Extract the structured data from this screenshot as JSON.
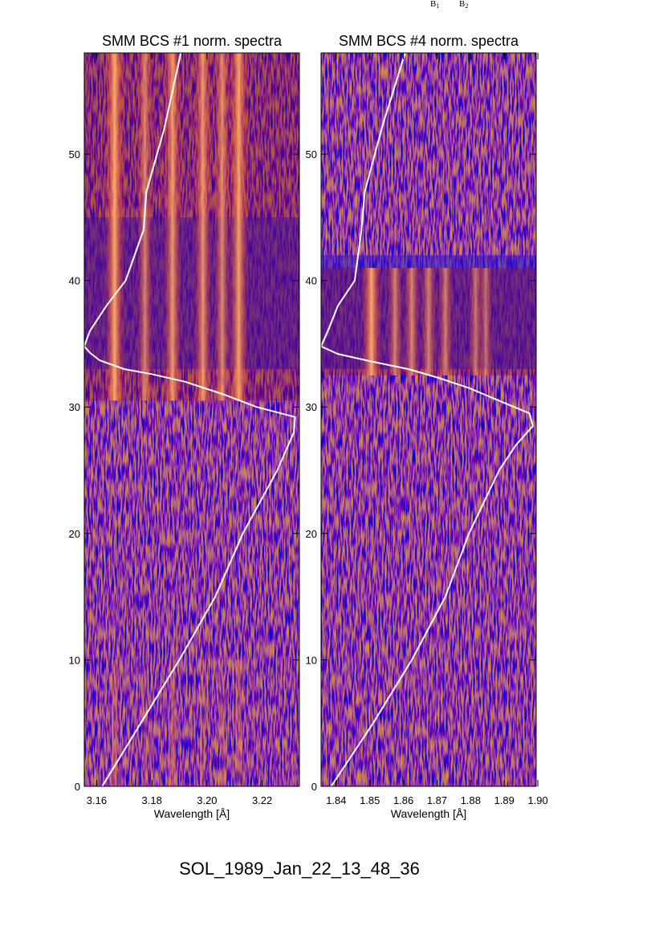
{
  "footer_label": "SOL_1989_Jan_22_13_48_36",
  "corner_labels": [
    "B",
    "B"
  ],
  "corner_subscripts": [
    "1",
    "2"
  ],
  "chart_data": [
    {
      "type": "heatmap",
      "title": "SMM BCS #1 norm. spectra",
      "xlabel": "Wavelength [Å]",
      "ylabel": "",
      "xlim": [
        3.1555,
        3.2335
      ],
      "ylim": [
        0,
        58
      ],
      "x_ticks": [
        3.16,
        3.18,
        3.2,
        3.22
      ],
      "x_tick_labels": [
        "3.16",
        "3.18",
        "3.20",
        "3.22"
      ],
      "y_ticks": [
        0,
        10,
        20,
        30,
        40,
        50
      ],
      "y_tick_labels": [
        "0",
        "10",
        "20",
        "30",
        "40",
        "50"
      ],
      "bright_band_time_range": [
        30.5,
        58
      ],
      "quiet_blue_time_range": [
        33,
        45
      ],
      "emission_lines": [
        {
          "wavelength": 3.1665,
          "strength": 1.0
        },
        {
          "wavelength": 3.1775,
          "strength": 0.5
        },
        {
          "wavelength": 3.1875,
          "strength": 0.8
        },
        {
          "wavelength": 3.1985,
          "strength": 0.75
        },
        {
          "wavelength": 3.2055,
          "strength": 0.6
        },
        {
          "wavelength": 3.2115,
          "strength": 0.9
        }
      ],
      "light_curve": {
        "color": "#ffffff",
        "t": [
          0,
          5,
          10,
          15,
          20,
          25,
          28,
          29.2,
          30,
          31,
          32,
          32.6,
          33,
          33.7,
          34.3,
          34.8,
          36,
          38,
          40,
          44,
          47,
          52,
          58
        ],
        "wavelength": [
          3.162,
          3.176,
          3.19,
          3.203,
          3.213,
          3.2255,
          3.2315,
          3.232,
          3.218,
          3.206,
          3.192,
          3.18,
          3.17,
          3.161,
          3.1575,
          3.1555,
          3.1575,
          3.1635,
          3.1705,
          3.177,
          3.178,
          3.1845,
          3.1905
        ]
      }
    },
    {
      "type": "heatmap",
      "title": "SMM BCS #4 norm. spectra",
      "xlabel": "Wavelength [Å]",
      "ylabel": "",
      "xlim": [
        1.8355,
        1.8995
      ],
      "ylim": [
        0,
        58
      ],
      "x_ticks": [
        1.84,
        1.85,
        1.86,
        1.87,
        1.88,
        1.89,
        1.9
      ],
      "x_tick_labels": [
        "1.84",
        "1.85",
        "1.86",
        "1.87",
        "1.88",
        "1.89",
        "1.90"
      ],
      "y_ticks": [
        0,
        10,
        20,
        30,
        40,
        50
      ],
      "y_tick_labels": [
        "0",
        "10",
        "20",
        "30",
        "40",
        "50"
      ],
      "bright_band_time_range": [
        32.5,
        41
      ],
      "quiet_blue_time_range": [
        33,
        42
      ],
      "emission_lines": [
        {
          "wavelength": 1.8505,
          "strength": 1.0
        },
        {
          "wavelength": 1.8575,
          "strength": 0.5
        },
        {
          "wavelength": 1.8625,
          "strength": 0.55
        },
        {
          "wavelength": 1.8675,
          "strength": 0.5
        },
        {
          "wavelength": 1.8725,
          "strength": 0.45
        },
        {
          "wavelength": 1.8815,
          "strength": 0.35
        },
        {
          "wavelength": 1.8845,
          "strength": 0.3
        }
      ],
      "light_curve": {
        "color": "#ffffff",
        "t": [
          0,
          5,
          10,
          15,
          20,
          25,
          27,
          28.5,
          29.5,
          30.5,
          31.5,
          32.3,
          33,
          33.6,
          34.2,
          34.8,
          36,
          38,
          40,
          44,
          47,
          52,
          58
        ],
        "wavelength": [
          1.8385,
          1.851,
          1.8625,
          1.8725,
          1.8795,
          1.8885,
          1.8935,
          1.8985,
          1.8975,
          1.8885,
          1.8795,
          1.8705,
          1.8615,
          1.8505,
          1.8405,
          1.8355,
          1.8375,
          1.8405,
          1.8455,
          1.8475,
          1.8485,
          1.8535,
          1.8605
        ]
      }
    }
  ]
}
